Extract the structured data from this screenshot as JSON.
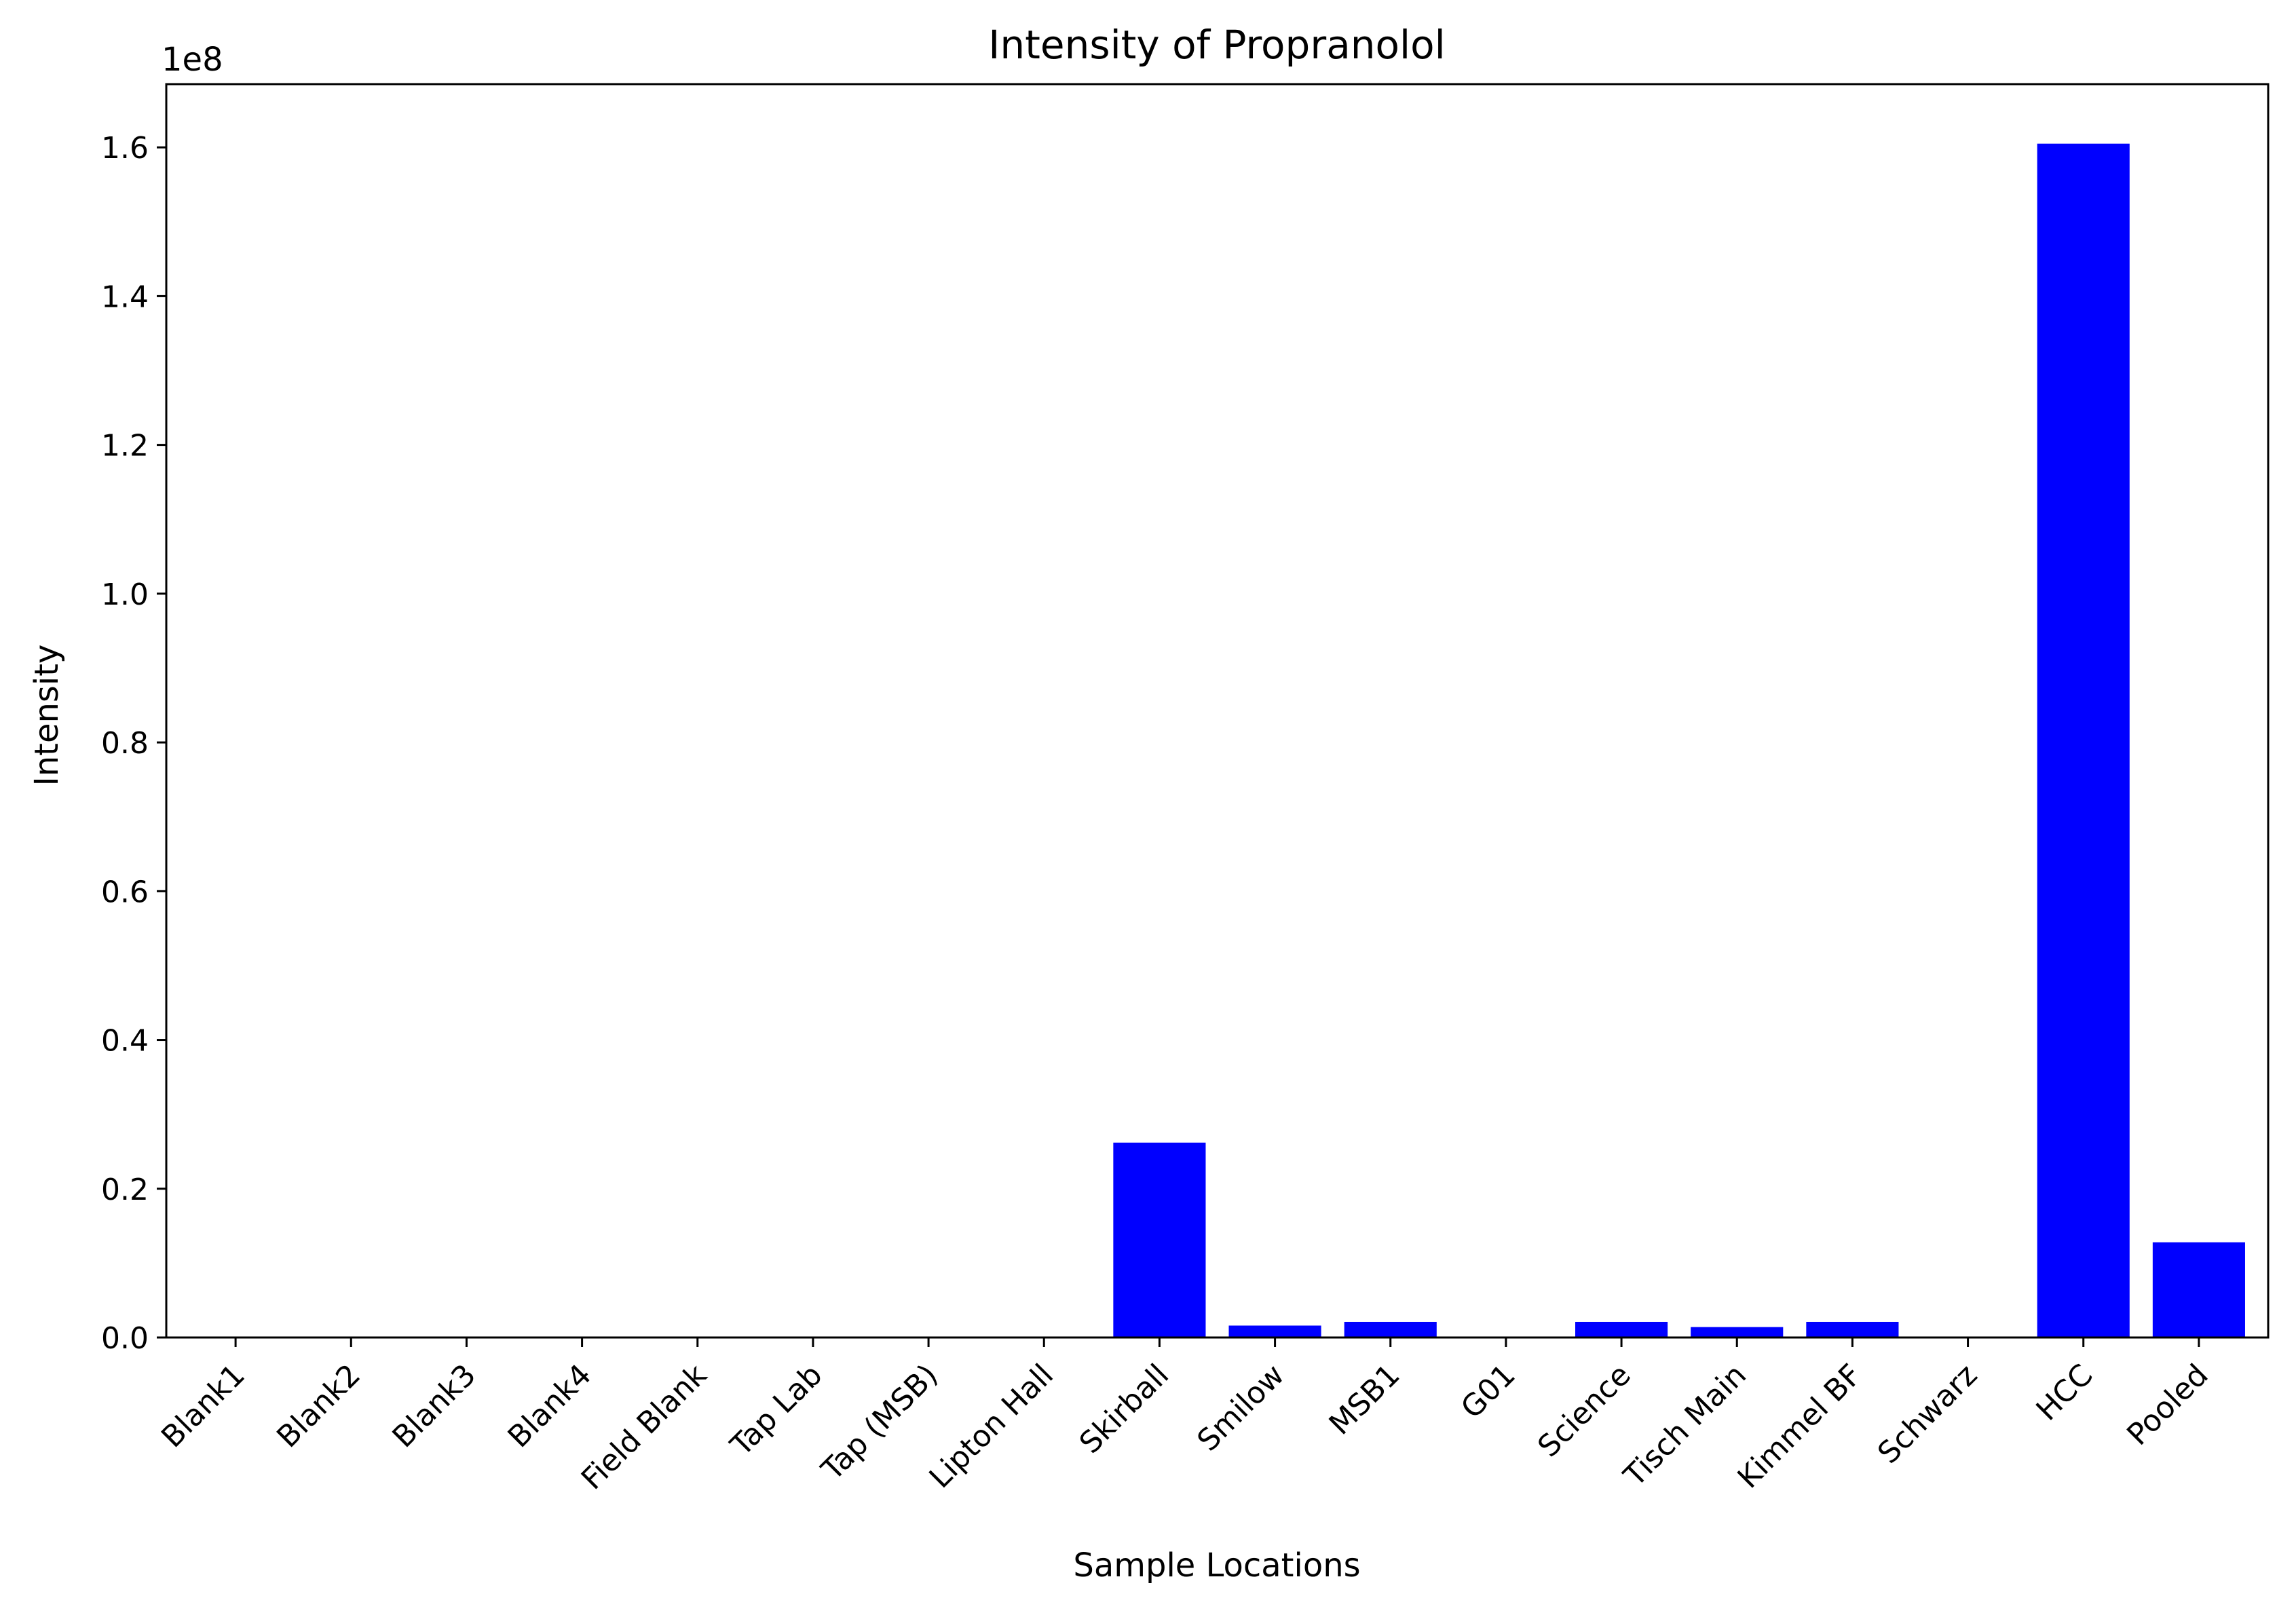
{
  "chart_data": {
    "type": "bar",
    "title": "Intensity of Propranolol",
    "xlabel": "Sample Locations",
    "ylabel": "Intensity",
    "offset_label": "1e8",
    "categories": [
      "Blank1",
      "Blank2",
      "Blank3",
      "Blank4",
      "Field Blank",
      "Tap Lab",
      "Tap (MSB)",
      "Lipton Hall",
      "Skirball",
      "Smilow",
      "MSB1",
      "G01",
      "Science",
      "Tisch Main",
      "Kimmel BF",
      "Schwarz",
      "HCC",
      "Pooled"
    ],
    "values": [
      0,
      0,
      0,
      0,
      0,
      0,
      0,
      0,
      26200000,
      1600000,
      2100000,
      0,
      2100000,
      1400000,
      2100000,
      0,
      160500000,
      12800000
    ],
    "ylim": [
      0,
      168500000
    ],
    "yticks": [
      0,
      20000000,
      40000000,
      60000000,
      80000000,
      100000000,
      120000000,
      140000000,
      160000000
    ],
    "ytick_labels": [
      "0.0",
      "0.2",
      "0.4",
      "0.6",
      "0.8",
      "1.0",
      "1.2",
      "1.4",
      "1.6"
    ],
    "bar_color": "#0000ff",
    "grid": false,
    "legend": "none"
  }
}
